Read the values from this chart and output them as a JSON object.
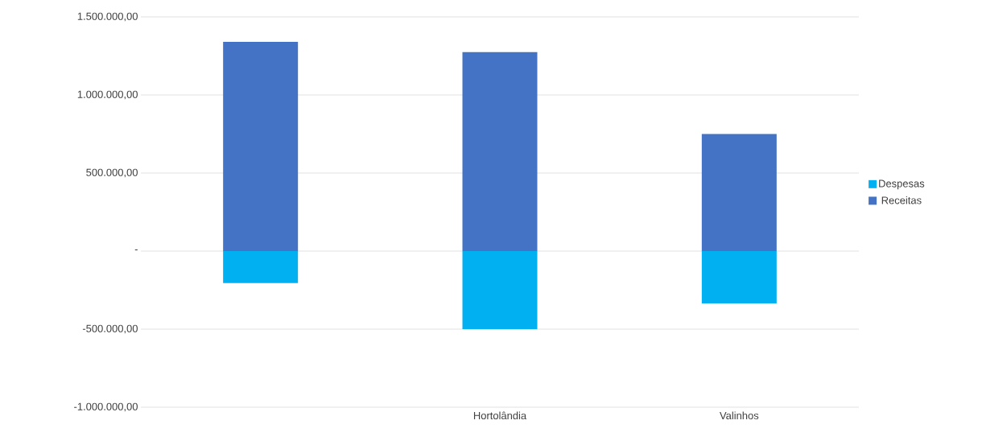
{
  "chart_data": {
    "type": "bar",
    "stacked": true,
    "categories": [
      null,
      "Hortolândia",
      "Valinhos"
    ],
    "series": [
      {
        "name": "Despesas",
        "color": "#00b0f0",
        "values": [
          -205000,
          -500000,
          -335000
        ]
      },
      {
        "name": "Receitas",
        "color": "#4472c4",
        "values": [
          1340000,
          1275000,
          750000
        ]
      }
    ],
    "ylim": [
      -1000000,
      1500000
    ],
    "yticks": [
      {
        "value": -1000000,
        "label": "-1.000.000,00"
      },
      {
        "value": -500000,
        "label": "-500.000,00"
      },
      {
        "value": 0,
        "label": "-"
      },
      {
        "value": 500000,
        "label": "500.000,00"
      },
      {
        "value": 1000000,
        "label": "1.000.000,00"
      },
      {
        "value": 1500000,
        "label": "1.500.000,00"
      }
    ],
    "grid": "y",
    "legend": "right"
  }
}
